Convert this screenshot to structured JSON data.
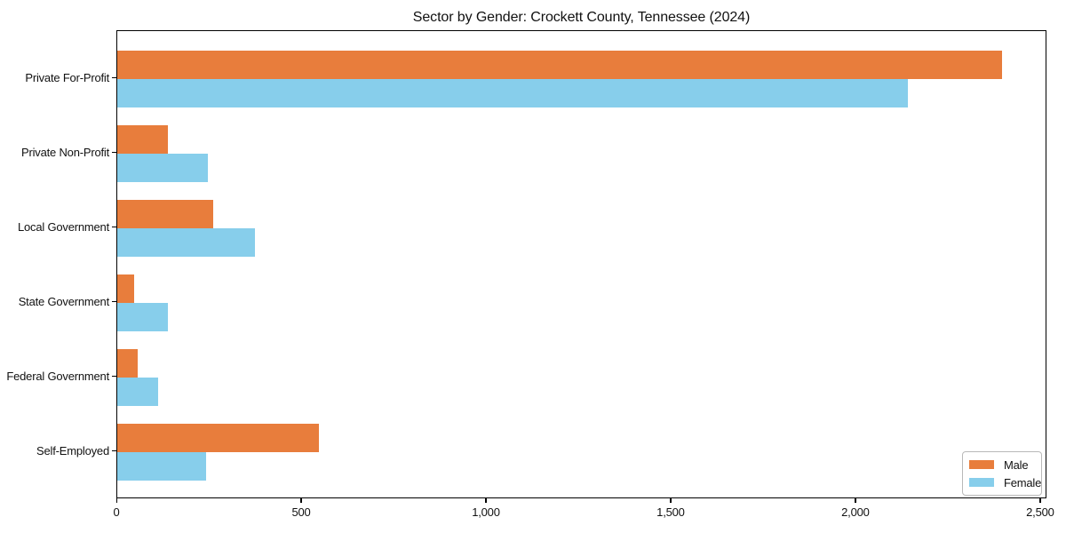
{
  "title": "Sector by Gender: Crockett County, Tennessee (2024)",
  "chart_data": {
    "type": "bar",
    "orientation": "horizontal",
    "title": "Sector by Gender: Crockett County, Tennessee (2024)",
    "categories": [
      "Private For-Profit",
      "Private Non-Profit",
      "Local Government",
      "State Government",
      "Federal Government",
      "Self-Employed"
    ],
    "series": [
      {
        "name": "Male",
        "color": "#E87D3C",
        "values": [
          2395,
          138,
          260,
          46,
          56,
          546
        ]
      },
      {
        "name": "Female",
        "color": "#87CEEB",
        "values": [
          2140,
          246,
          373,
          138,
          110,
          240
        ]
      }
    ],
    "xlabel": "",
    "ylabel": "",
    "xlim": [
      0,
      2517
    ],
    "xticks": [
      {
        "value": 0,
        "label": "0"
      },
      {
        "value": 500,
        "label": "500"
      },
      {
        "value": 1000,
        "label": "1,000"
      },
      {
        "value": 1500,
        "label": "1,500"
      },
      {
        "value": 2000,
        "label": "2,000"
      },
      {
        "value": 2500,
        "label": "2,500"
      }
    ],
    "grid": false,
    "legend_position": "lower right"
  },
  "legend": {
    "items": [
      {
        "label": "Male",
        "color": "#E87D3C"
      },
      {
        "label": "Female",
        "color": "#87CEEB"
      }
    ]
  }
}
